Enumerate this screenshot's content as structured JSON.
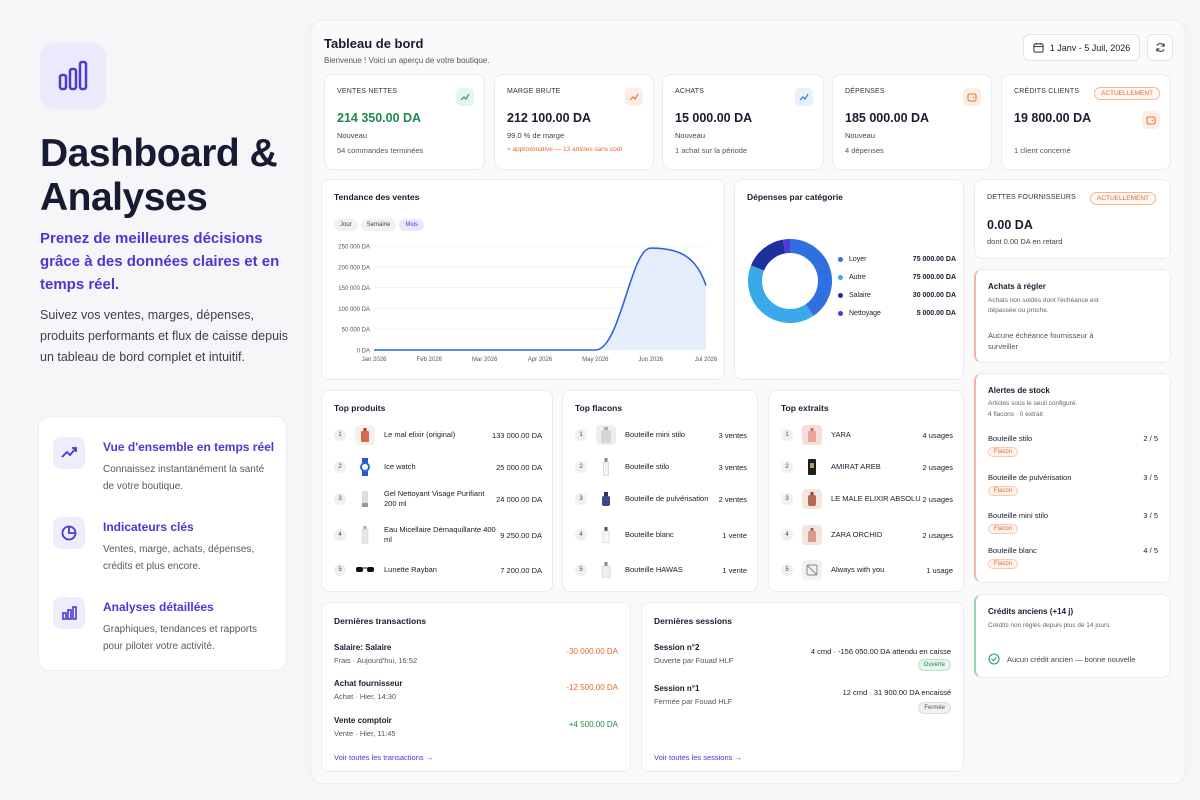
{
  "hero": {
    "title_line1": "Dashboard &",
    "title_line2": "Analyses",
    "subtitle": "Prenez de meilleures décisions grâce à des données claires et en temps réel.",
    "description": "Suivez vos ventes, marges, dépenses, produits performants et flux de caisse depuis un tableau de bord complet et intuitif."
  },
  "features": [
    {
      "title": "Vue d'ensemble en temps réel",
      "desc": "Connaissez instantanément la santé de votre boutique.",
      "icon": "trend-up-icon"
    },
    {
      "title": "Indicateurs clés",
      "desc": "Ventes, marge, achats, dépenses, crédits et plus encore.",
      "icon": "pie-chart-icon"
    },
    {
      "title": "Analyses détaillées",
      "desc": "Graphiques, tendances et rapports pour piloter votre activité.",
      "icon": "bar-chart-icon"
    }
  ],
  "header": {
    "title": "Tableau de bord",
    "subtitle": "Bienvenue ! Voici un aperçu de votre boutique.",
    "date_range": "1 Janv - 5 Juil, 2026"
  },
  "kpis": [
    {
      "label": "VENTES NETTES",
      "value": "214 350.00 DA",
      "note": "Nouveau",
      "foot": "54 commandes terminées",
      "value_color": "#1f8a4c",
      "icon": "trend-up-icon",
      "icon_color": "#22a05a",
      "icon_bg": "#e6f6ec"
    },
    {
      "label": "MARGE BRUTE",
      "value": "212 100.00 DA",
      "note": "99.0 % de marge",
      "foot": "≈ approximative — 13 articles sans coût",
      "foot_color": "#e06b30",
      "icon": "trend-up-icon",
      "icon_color": "#e8763a",
      "icon_bg": "#fdeee5"
    },
    {
      "label": "ACHATS",
      "value": "15 000.00 DA",
      "note": "Nouveau",
      "foot": "1 achat sur la période",
      "icon": "trend-up-icon",
      "icon_color": "#2f7be0",
      "icon_bg": "#e7f0fc"
    },
    {
      "label": "DÉPENSES",
      "value": "185 000.00 DA",
      "note": "Nouveau",
      "foot": "4 dépenses",
      "icon": "wallet-icon",
      "icon_color": "#e8763a",
      "icon_bg": "#fdeee5"
    },
    {
      "label": "CRÉDITS CLIENTS",
      "value": "19 800.00 DA",
      "note": "",
      "foot": "1 client concerné",
      "badge": "ACTUELLEMENT",
      "icon": "wallet-icon",
      "icon_color": "#e8763a",
      "icon_bg": "#fdeee5"
    }
  ],
  "sales_trend": {
    "title": "Tendance des ventes",
    "tabs": [
      "Jour",
      "Semaine",
      "Mois"
    ],
    "active_tab": "Mois"
  },
  "chart_data": [
    {
      "type": "area",
      "title": "Tendance des ventes",
      "x": [
        "Jan 2026",
        "Feb 2026",
        "Mar 2026",
        "Apr 2026",
        "May 2026",
        "Jun 2026",
        "Jul 2026"
      ],
      "series": [
        {
          "values": [
            0,
            0,
            0,
            0,
            0,
            245000,
            155000
          ]
        }
      ],
      "y_ticks": [
        "0 DA",
        "50 000 DA",
        "100 000 DA",
        "150 000 DA",
        "200 000 DA",
        "250 000 DA"
      ],
      "ylim": [
        0,
        250000
      ],
      "grid": true
    },
    {
      "type": "pie",
      "title": "Dépenses par catégorie",
      "categories": [
        "Loyer",
        "Autre",
        "Salaire",
        "Nettoyage"
      ],
      "values": [
        75000,
        75000,
        30000,
        5000
      ],
      "value_labels": [
        "75 000.00 DA",
        "75 000.00 DA",
        "30 000.00 DA",
        "5 000.00 DA"
      ],
      "colors": [
        "#2f6fe0",
        "#3aa9ea",
        "#1e2f9e",
        "#4b3bd8"
      ],
      "legend": "right"
    }
  ],
  "debts": {
    "label": "DETTES FOURNISSEURS",
    "badge": "ACTUELLEMENT",
    "value": "0.00 DA",
    "sub": "dont 0.00 DA en retard"
  },
  "to_pay": {
    "title": "Achats à régler",
    "desc": "Achats non soldés dont l'échéance est dépassée ou proche.",
    "empty": "Aucune échéance fournisseur à surveiller"
  },
  "stock": {
    "title": "Alertes de stock",
    "desc": "Articles sous le seuil configuré.",
    "counts": "4 flacons · 0 extrait",
    "items": [
      {
        "name": "Bouteille stilo",
        "qty": "2 / 5",
        "tag": "Flacon"
      },
      {
        "name": "Bouteille de pulvérisation",
        "qty": "3 / 5",
        "tag": "Flacon"
      },
      {
        "name": "Bouteille mini stilo",
        "qty": "3 / 5",
        "tag": "Flacon"
      },
      {
        "name": "Bouteille blanc",
        "qty": "4 / 5",
        "tag": "Flacon"
      }
    ]
  },
  "old_credits": {
    "title": "Crédits anciens (+14 j)",
    "desc": "Crédits non réglés depuis plus de 14 jours.",
    "empty": "Aucun crédit ancien — bonne nouvelle"
  },
  "top_products": {
    "title": "Top produits",
    "items": [
      {
        "rank": "1",
        "name": "Le mal elixir (original)",
        "value": "133 000.00 DA",
        "icon": "perfume-bottle-icon"
      },
      {
        "rank": "2",
        "name": "Ice watch",
        "value": "25 000.00 DA",
        "icon": "watch-icon"
      },
      {
        "rank": "3",
        "name": "Gel Nettoyant Visage Purifiant 200 ml",
        "value": "24 000.00 DA",
        "icon": "tube-icon"
      },
      {
        "rank": "4",
        "name": "Eau Micellaire Démaquillante 400 ml",
        "value": "9 250.00 DA",
        "icon": "bottle-icon"
      },
      {
        "rank": "5",
        "name": "Lunette Rayban",
        "value": "7 200.00 DA",
        "icon": "sunglasses-icon"
      }
    ]
  },
  "top_flacons": {
    "title": "Top flacons",
    "items": [
      {
        "rank": "1",
        "name": "Bouteille mini stilo",
        "value": "3 ventes"
      },
      {
        "rank": "2",
        "name": "Bouteille stilo",
        "value": "3 ventes"
      },
      {
        "rank": "3",
        "name": "Bouteille de pulvérisation",
        "value": "2 ventes"
      },
      {
        "rank": "4",
        "name": "Bouteille blanc",
        "value": "1 vente"
      },
      {
        "rank": "5",
        "name": "Bouteille HAWAS",
        "value": "1 vente"
      }
    ]
  },
  "top_extraits": {
    "title": "Top extraits",
    "items": [
      {
        "rank": "1",
        "name": "YARA",
        "value": "4 usages"
      },
      {
        "rank": "2",
        "name": "AMIRAT AREB",
        "value": "2 usages"
      },
      {
        "rank": "3",
        "name": "LE MALE ELIXIR ABSOLU",
        "value": "2 usages"
      },
      {
        "rank": "4",
        "name": "ZARA ORCHID",
        "value": "2 usages"
      },
      {
        "rank": "5",
        "name": "Always with you",
        "value": "1 usage"
      }
    ]
  },
  "transactions": {
    "title": "Dernières transactions",
    "link": "Voir toutes les transactions",
    "items": [
      {
        "name": "Salaire: Salaire",
        "sub": "Frais · Aujourd'hui, 16:52",
        "amount": "-30 000.00 DA",
        "color": "#e06b30"
      },
      {
        "name": "Achat fournisseur",
        "sub": "Achat · Hier, 14:30",
        "amount": "-12 500.00 DA",
        "color": "#e06b30"
      },
      {
        "name": "Vente comptoir",
        "sub": "Vente · Hier, 11:45",
        "amount": "+4 500.00 DA",
        "color": "#1f8a4c"
      }
    ]
  },
  "sessions": {
    "title": "Dernières sessions",
    "link": "Voir toutes les sessions",
    "items": [
      {
        "name": "Session n°2",
        "sub": "Ouverte par Fouad HLF",
        "summary": "4 cmd · -156 050.00 DA attendu en caisse",
        "status": "Ouverte"
      },
      {
        "name": "Session n°1",
        "sub": "Fermée par Fouad HLF",
        "summary": "12 cmd · 31 900.00 DA encaissé",
        "status": "Fermée"
      }
    ]
  }
}
